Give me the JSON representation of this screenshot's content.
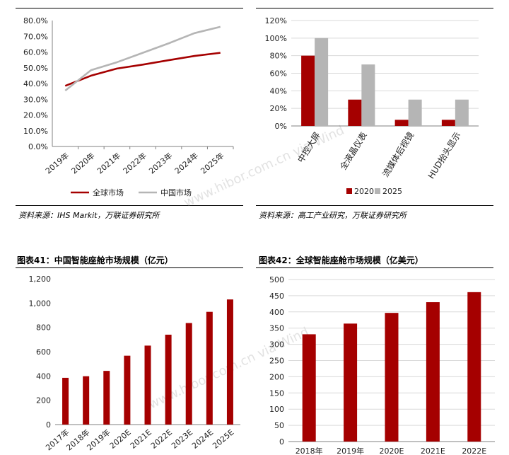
{
  "sources": {
    "left": "资料来源：IHS Markit，万联证券研究所",
    "right": "资料来源：高工产业研究，万联证券研究所"
  },
  "captions": {
    "fig41": "图表41：中国智能座舱市场规模（亿元）",
    "fig42": "图表42：全球智能座舱市场规模（亿美元）"
  },
  "watermark": "www.hibor.com.cn via Wind",
  "colors": {
    "red": "#A50000",
    "gray": "#B5B5B5",
    "axis": "#808080",
    "grid": "#D9D9D9"
  },
  "chart_data": [
    {
      "type": "line",
      "title": "",
      "categories": [
        "2019年",
        "2020年",
        "2021年",
        "2022年",
        "2023年",
        "2024年",
        "2025年"
      ],
      "ylim": [
        0,
        80
      ],
      "yticks": [
        "0.0%",
        "10.0%",
        "20.0%",
        "30.0%",
        "40.0%",
        "50.0%",
        "60.0%",
        "70.0%",
        "80.0%"
      ],
      "series": [
        {
          "name": "全球市场",
          "color": "#A50000",
          "values": [
            38.5,
            45.0,
            49.5,
            52.0,
            54.8,
            57.5,
            59.5
          ]
        },
        {
          "name": "中国市场",
          "color": "#B5B5B5",
          "values": [
            35.5,
            48.5,
            53.5,
            59.5,
            65.5,
            72.0,
            76.0
          ]
        }
      ],
      "legend": "bottom",
      "grid": false
    },
    {
      "type": "bar",
      "title": "",
      "categories": [
        "中控大屏",
        "全液晶仪表",
        "流媒体后视镜",
        "HUD抬头显示"
      ],
      "ylim": [
        0,
        120
      ],
      "yticks": [
        "0%",
        "20%",
        "40%",
        "60%",
        "80%",
        "100%",
        "120%"
      ],
      "series": [
        {
          "name": "2020",
          "color": "#A50000",
          "values": [
            80,
            30,
            7,
            7
          ]
        },
        {
          "name": "2025",
          "color": "#B5B5B5",
          "values": [
            100,
            70,
            30,
            30
          ]
        }
      ],
      "legend": "bottom",
      "grid": true
    },
    {
      "type": "bar",
      "title": "",
      "categories": [
        "2017年",
        "2018年",
        "2019年",
        "2020E",
        "2021E",
        "2022E",
        "2023E",
        "2024E",
        "2025E"
      ],
      "ylim": [
        0,
        1200
      ],
      "yticks": [
        "0",
        "200",
        "400",
        "600",
        "800",
        "1,000",
        "1,200"
      ],
      "series": [
        {
          "color": "#A50000",
          "values": [
            385,
            398,
            442,
            567,
            650,
            740,
            836,
            928,
            1030
          ]
        }
      ],
      "grid": false
    },
    {
      "type": "bar",
      "title": "",
      "categories": [
        "2018年",
        "2019年",
        "2020E",
        "2021E",
        "2022E"
      ],
      "ylim": [
        0,
        500
      ],
      "yticks": [
        "0",
        "50",
        "100",
        "150",
        "200",
        "250",
        "300",
        "350",
        "400",
        "450",
        "500"
      ],
      "series": [
        {
          "color": "#A50000",
          "values": [
            331,
            364,
            397,
            430,
            461
          ]
        }
      ],
      "grid": true
    }
  ]
}
